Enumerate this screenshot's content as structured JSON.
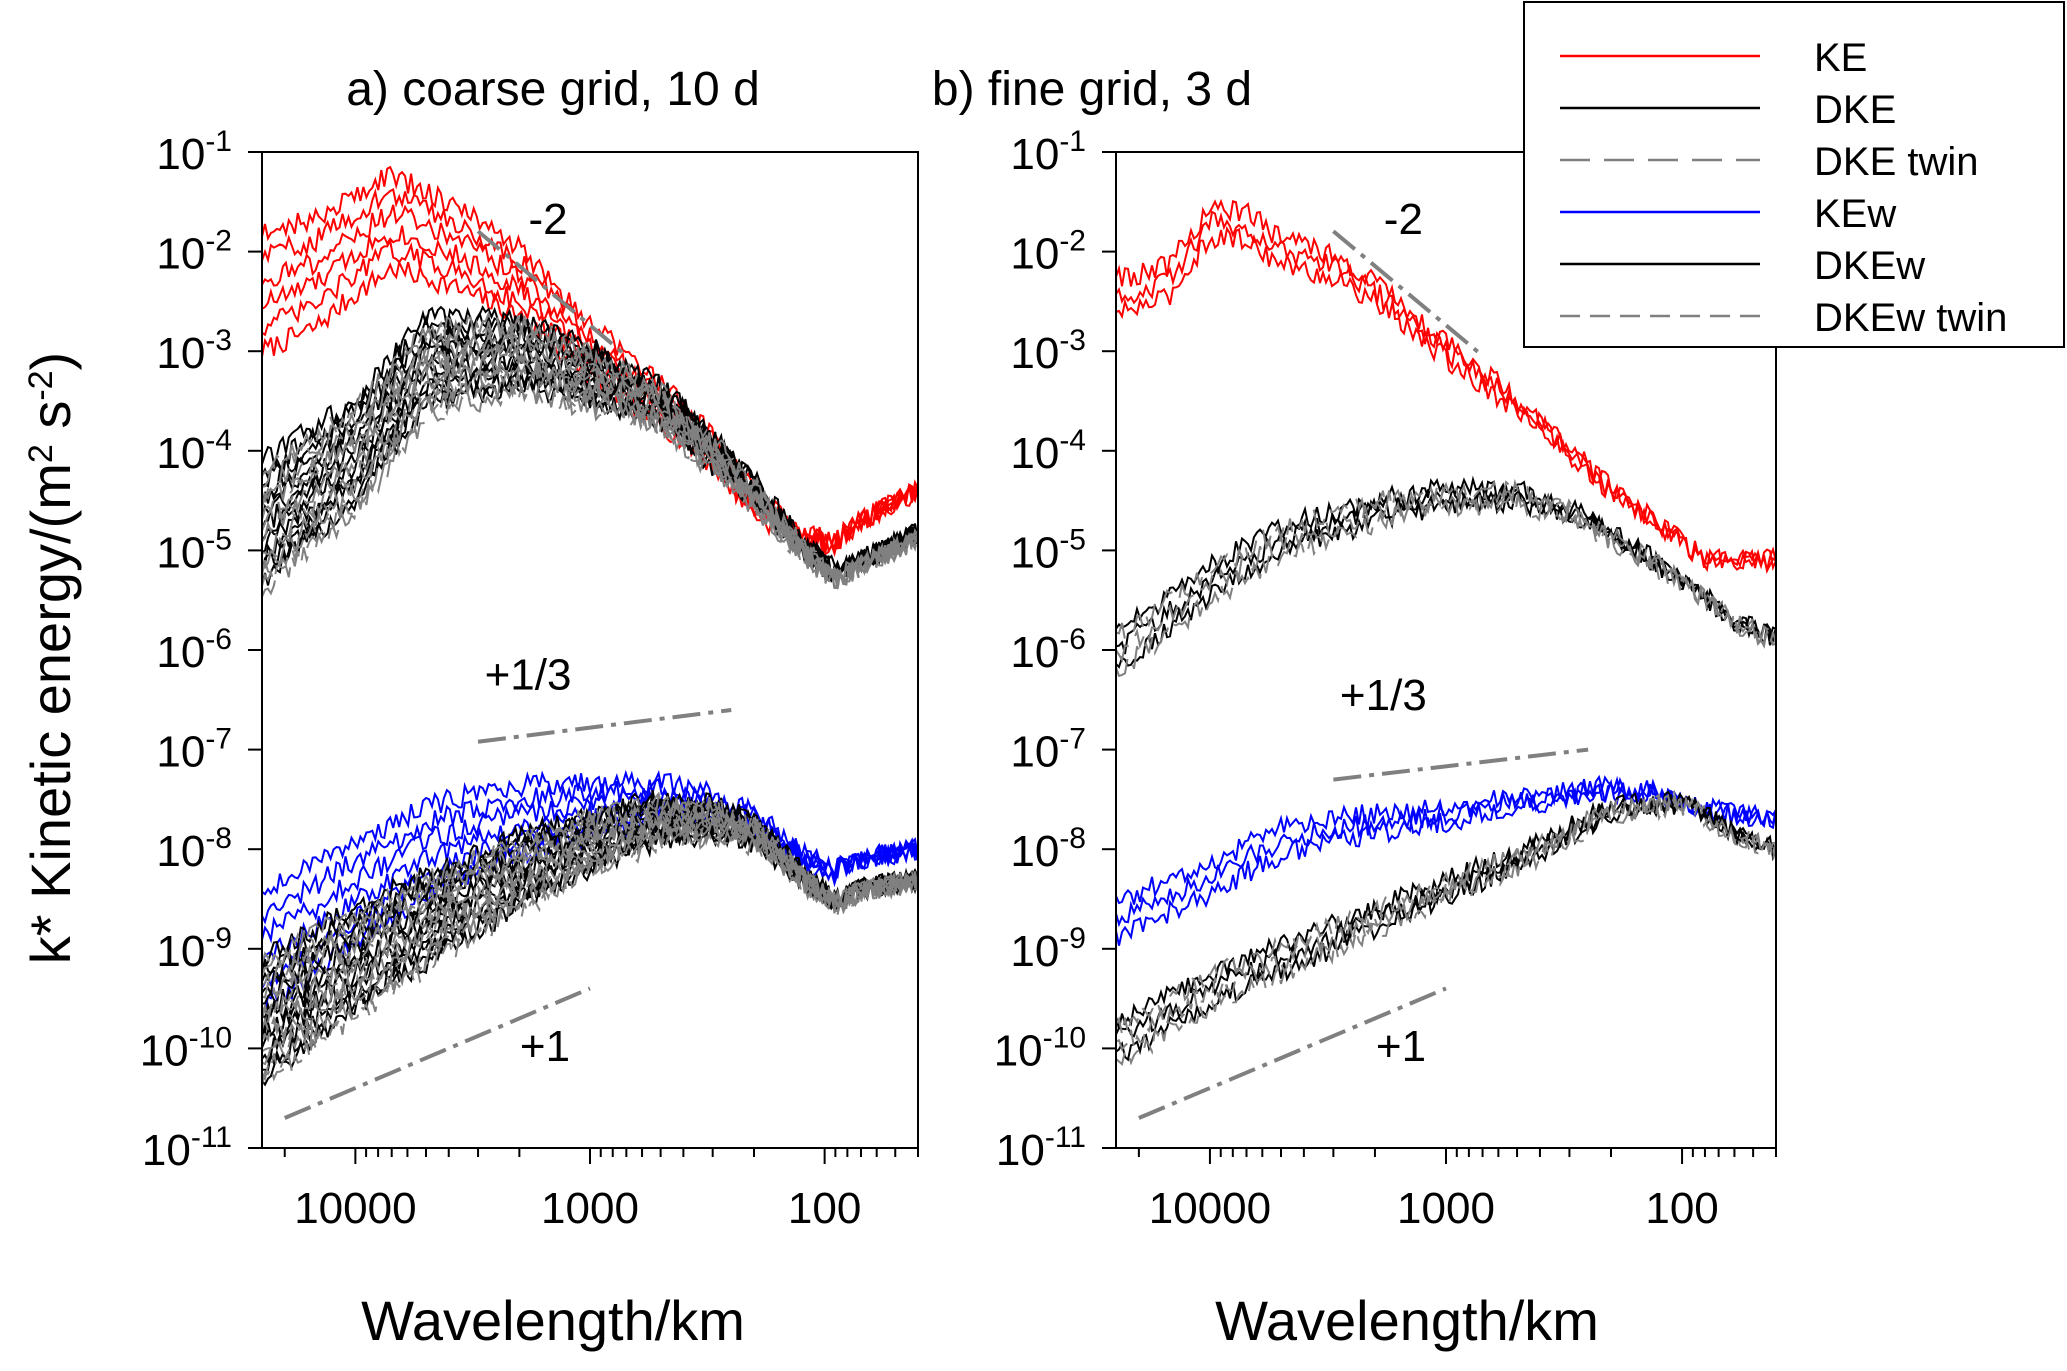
{
  "figure": {
    "ylabel": "k* Kinetic energy/(m",
    "ylabel_sup1": "2",
    "ylabel_mid": " s",
    "ylabel_sup2": "-2",
    "ylabel_end": ")"
  },
  "legend": {
    "placement": "top-right",
    "items": [
      {
        "label": "KE",
        "color": "#ff0000",
        "style": "solid"
      },
      {
        "label": "DKE",
        "color": "#000000",
        "style": "solid"
      },
      {
        "label": "DKE twin",
        "color": "#808080",
        "style": "long-dash"
      },
      {
        "label": "KEw",
        "color": "#0000ff",
        "style": "solid"
      },
      {
        "label": "DKEw",
        "color": "#000000",
        "style": "solid"
      },
      {
        "label": "DKEw twin",
        "color": "#808080",
        "style": "dash"
      }
    ]
  },
  "chart_data": [
    {
      "type": "line",
      "title": "a) coarse grid, 10 d",
      "xlabel": "Wavelength/km",
      "ylabel": "k* Kinetic energy/(m2 s-2)",
      "x_scale": "log",
      "y_scale": "log",
      "x_reversed": true,
      "xlim": [
        25000,
        40
      ],
      "ylim": [
        1e-11,
        0.1
      ],
      "x_ticks": [
        10000,
        1000,
        100
      ],
      "x_tick_labels": [
        "10000",
        "1000",
        "100"
      ],
      "y_tick_exponents": [
        "-1",
        "-2",
        "-3",
        "-4",
        "-5",
        "-6",
        "-7",
        "-8",
        "-9",
        "-10",
        "-11"
      ],
      "grid": false,
      "series": [
        {
          "name": "KE",
          "color": "#ff0000",
          "count": 6,
          "anchors": [
            [
              25000,
              0.004
            ],
            [
              15000,
              0.006
            ],
            [
              10000,
              0.012
            ],
            [
              7000,
              0.02
            ],
            [
              4000,
              0.012
            ],
            [
              2000,
              0.005
            ],
            [
              1000,
              0.001
            ],
            [
              500,
              0.0003
            ],
            [
              300,
              0.0001
            ],
            [
              200,
              3e-05
            ],
            [
              120,
              1.3e-05
            ],
            [
              90,
              1.2e-05
            ],
            [
              70,
              2e-05
            ],
            [
              40,
              4e-05
            ]
          ]
        },
        {
          "name": "DKE",
          "color": "#000000",
          "count": 12,
          "anchors": [
            [
              25000,
              2e-05
            ],
            [
              10000,
              0.0001
            ],
            [
              5000,
              0.0008
            ],
            [
              2000,
              0.001
            ],
            [
              1000,
              0.0006
            ],
            [
              500,
              0.0003
            ],
            [
              300,
              0.0001
            ],
            [
              200,
              4e-05
            ],
            [
              120,
              1e-05
            ],
            [
              90,
              6e-06
            ],
            [
              70,
              8e-06
            ],
            [
              40,
              1.5e-05
            ]
          ]
        },
        {
          "name": "DKE twin",
          "color": "#808080",
          "count": 12,
          "anchors": [
            [
              25000,
              1.5e-05
            ],
            [
              10000,
              8e-05
            ],
            [
              5000,
              0.0006
            ],
            [
              2000,
              0.0009
            ],
            [
              1000,
              0.0005
            ],
            [
              500,
              0.00025
            ],
            [
              300,
              9e-05
            ],
            [
              200,
              3.5e-05
            ],
            [
              120,
              9e-06
            ],
            [
              90,
              5e-06
            ],
            [
              70,
              7e-06
            ],
            [
              40,
              1.3e-05
            ]
          ]
        },
        {
          "name": "KEw",
          "color": "#0000ff",
          "count": 6,
          "anchors": [
            [
              25000,
              1e-09
            ],
            [
              15000,
              2e-09
            ],
            [
              10000,
              4e-09
            ],
            [
              7000,
              6e-09
            ],
            [
              5000,
              1e-08
            ],
            [
              3000,
              1.5e-08
            ],
            [
              2000,
              2e-08
            ],
            [
              1000,
              2.5e-08
            ],
            [
              500,
              3e-08
            ],
            [
              300,
              2.5e-08
            ],
            [
              200,
              1.8e-08
            ],
            [
              120,
              8e-09
            ],
            [
              90,
              6e-09
            ],
            [
              70,
              8e-09
            ],
            [
              40,
              1e-08
            ]
          ]
        },
        {
          "name": "DKEw",
          "color": "#000000",
          "count": 12,
          "anchors": [
            [
              25000,
              2e-10
            ],
            [
              10000,
              8e-10
            ],
            [
              5000,
              2e-09
            ],
            [
              2000,
              6e-09
            ],
            [
              1000,
              1.2e-08
            ],
            [
              500,
              2e-08
            ],
            [
              300,
              2e-08
            ],
            [
              200,
              1.5e-08
            ],
            [
              120,
              5e-09
            ],
            [
              90,
              3e-09
            ],
            [
              70,
              4e-09
            ],
            [
              40,
              5e-09
            ]
          ]
        },
        {
          "name": "DKEw twin",
          "color": "#808080",
          "count": 12,
          "anchors": [
            [
              25000,
              1.8e-10
            ],
            [
              10000,
              7e-10
            ],
            [
              5000,
              1.8e-09
            ],
            [
              2000,
              5.5e-09
            ],
            [
              1000,
              1.1e-08
            ],
            [
              500,
              1.9e-08
            ],
            [
              300,
              1.9e-08
            ],
            [
              200,
              1.4e-08
            ],
            [
              120,
              4.8e-09
            ],
            [
              90,
              2.8e-09
            ],
            [
              70,
              3.8e-09
            ],
            [
              40,
              4.8e-09
            ]
          ]
        }
      ],
      "reference_lines": [
        {
          "label": "-2",
          "slope": -2,
          "from": [
            3000,
            0.016
          ],
          "to": [
            700,
            0.0009
          ]
        },
        {
          "label": "+1/3",
          "slope": 0.333,
          "from": [
            3000,
            1.2e-07
          ],
          "to": [
            250,
            2.5e-07
          ]
        },
        {
          "label": "+1",
          "slope": 1,
          "from": [
            20000,
            2e-11
          ],
          "to": [
            1000,
            4e-10
          ]
        }
      ]
    },
    {
      "type": "line",
      "title": "b) fine grid, 3 d",
      "xlabel": "Wavelength/km",
      "ylabel": "",
      "x_scale": "log",
      "y_scale": "log",
      "x_reversed": true,
      "xlim": [
        25000,
        40
      ],
      "ylim": [
        1e-11,
        0.1
      ],
      "x_ticks": [
        10000,
        1000,
        100
      ],
      "x_tick_labels": [
        "10000",
        "1000",
        "100"
      ],
      "y_tick_exponents": [
        "-1",
        "-2",
        "-3",
        "-4",
        "-5",
        "-6",
        "-7",
        "-8",
        "-9",
        "-10",
        "-11"
      ],
      "grid": false,
      "series": [
        {
          "name": "KE",
          "color": "#ff0000",
          "count": 3,
          "anchors": [
            [
              25000,
              0.0035
            ],
            [
              15000,
              0.005
            ],
            [
              10000,
              0.02
            ],
            [
              7000,
              0.018
            ],
            [
              5000,
              0.01
            ],
            [
              3000,
              0.007
            ],
            [
              2000,
              0.004
            ],
            [
              1000,
              0.001
            ],
            [
              500,
              0.0003
            ],
            [
              300,
              0.0001
            ],
            [
              200,
              4e-05
            ],
            [
              120,
              1.7e-05
            ],
            [
              80,
              8e-06
            ],
            [
              40,
              8e-06
            ]
          ]
        },
        {
          "name": "DKE",
          "color": "#000000",
          "count": 3,
          "anchors": [
            [
              25000,
              1e-06
            ],
            [
              10000,
              5e-06
            ],
            [
              5000,
              1.3e-05
            ],
            [
              2000,
              2.5e-05
            ],
            [
              1000,
              3.5e-05
            ],
            [
              500,
              3.5e-05
            ],
            [
              300,
              2.5e-05
            ],
            [
              200,
              1.5e-05
            ],
            [
              100,
              5e-06
            ],
            [
              60,
              2e-06
            ],
            [
              40,
              1.3e-06
            ]
          ]
        },
        {
          "name": "DKE twin",
          "color": "#808080",
          "count": 3,
          "anchors": [
            [
              25000,
              9e-07
            ],
            [
              10000,
              4.5e-06
            ],
            [
              5000,
              1.2e-05
            ],
            [
              2000,
              2.4e-05
            ],
            [
              1000,
              3.4e-05
            ],
            [
              500,
              3.4e-05
            ],
            [
              300,
              2.4e-05
            ],
            [
              200,
              1.4e-05
            ],
            [
              100,
              4.8e-06
            ],
            [
              60,
              1.9e-06
            ],
            [
              40,
              1.2e-06
            ]
          ]
        },
        {
          "name": "KEw",
          "color": "#0000ff",
          "count": 3,
          "anchors": [
            [
              25000,
              2e-09
            ],
            [
              10000,
              5e-09
            ],
            [
              7000,
              8e-09
            ],
            [
              5000,
              1.2e-08
            ],
            [
              3000,
              1.6e-08
            ],
            [
              2000,
              1.8e-08
            ],
            [
              1000,
              2.2e-08
            ],
            [
              500,
              3e-08
            ],
            [
              300,
              3.5e-08
            ],
            [
              200,
              4e-08
            ],
            [
              120,
              3.5e-08
            ],
            [
              80,
              2.5e-08
            ],
            [
              40,
              2e-08
            ]
          ]
        },
        {
          "name": "DKEw",
          "color": "#000000",
          "count": 3,
          "anchors": [
            [
              25000,
              1.2e-10
            ],
            [
              10000,
              4e-10
            ],
            [
              5000,
              8e-10
            ],
            [
              2000,
              2e-09
            ],
            [
              1000,
              4e-09
            ],
            [
              500,
              8e-09
            ],
            [
              300,
              1.5e-08
            ],
            [
              200,
              2.5e-08
            ],
            [
              100,
              3e-08
            ],
            [
              60,
              1.5e-08
            ],
            [
              40,
              1e-08
            ]
          ]
        },
        {
          "name": "DKEw twin",
          "color": "#808080",
          "count": 3,
          "anchors": [
            [
              25000,
              1e-10
            ],
            [
              10000,
              3.8e-10
            ],
            [
              5000,
              7.5e-10
            ],
            [
              2000,
              1.9e-09
            ],
            [
              1000,
              3.8e-09
            ],
            [
              500,
              7.5e-09
            ],
            [
              300,
              1.4e-08
            ],
            [
              200,
              2.4e-08
            ],
            [
              100,
              2.9e-08
            ],
            [
              60,
              1.4e-08
            ],
            [
              40,
              9.5e-09
            ]
          ]
        }
      ],
      "reference_lines": [
        {
          "label": "-2",
          "slope": -2,
          "from": [
            3000,
            0.016
          ],
          "to": [
            700,
            0.0009
          ]
        },
        {
          "label": "+1/3",
          "slope": 0.333,
          "from": [
            3000,
            5e-08
          ],
          "to": [
            250,
            1e-07
          ]
        },
        {
          "label": "+1",
          "slope": 1,
          "from": [
            20000,
            2e-11
          ],
          "to": [
            1000,
            4e-10
          ]
        }
      ]
    }
  ]
}
